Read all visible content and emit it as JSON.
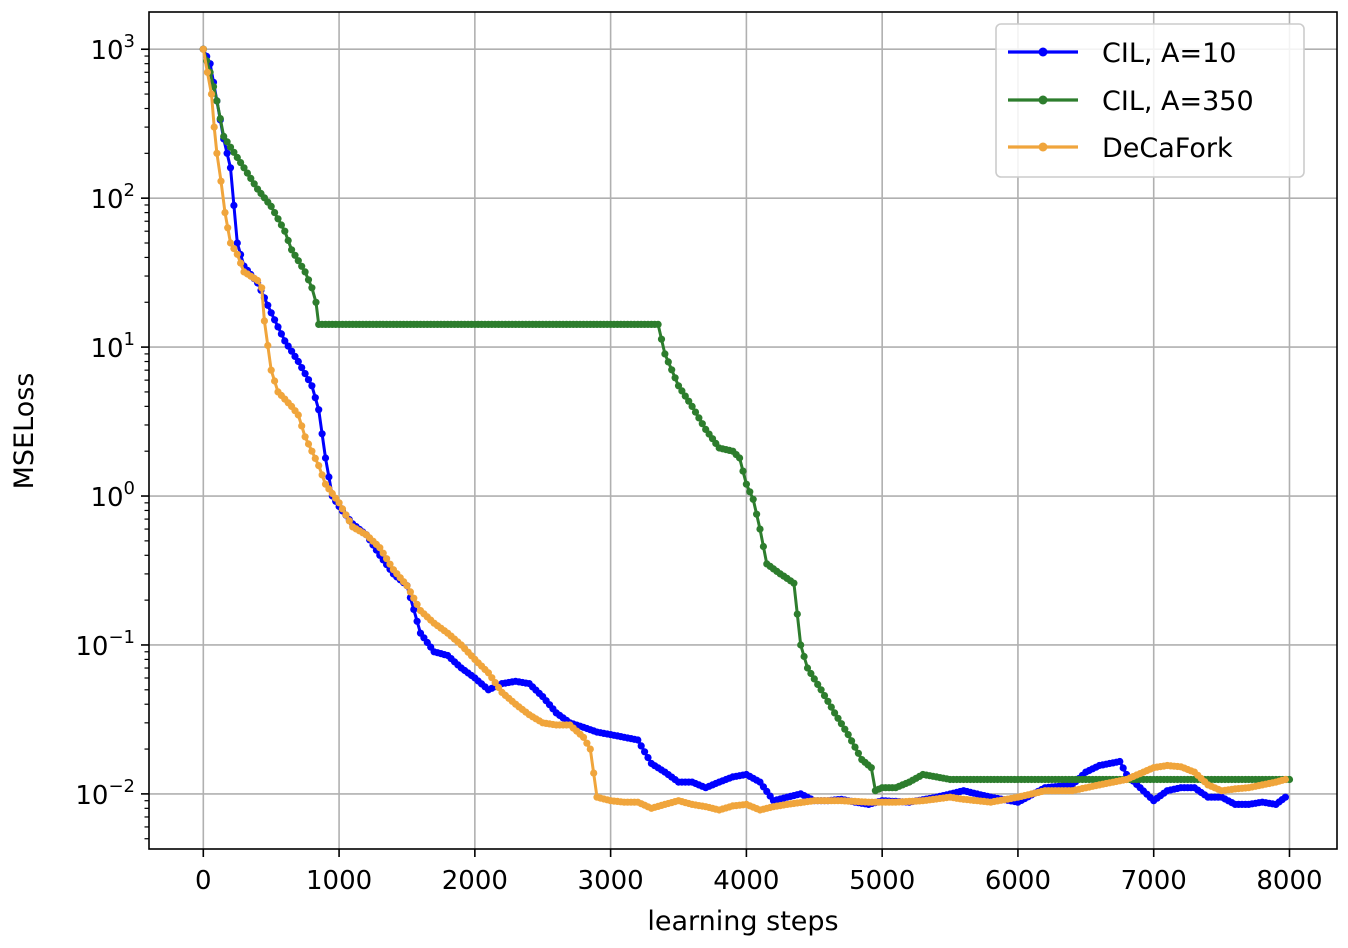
{
  "chart_data": {
    "type": "line",
    "title": "",
    "xlabel": "learning steps",
    "ylabel": "MSELoss",
    "xlim": [
      -400,
      8350
    ],
    "ylim_log10": [
      -2.37,
      3.25
    ],
    "yscale": "log",
    "grid": true,
    "legend_position": "top-right",
    "x_ticks": [
      0,
      1000,
      2000,
      3000,
      4000,
      5000,
      6000,
      7000,
      8000
    ],
    "x_tick_labels": [
      "0",
      "1000",
      "2000",
      "3000",
      "4000",
      "5000",
      "6000",
      "7000",
      "8000"
    ],
    "y_ticks_log10": [
      -2,
      -1,
      0,
      1,
      2,
      3
    ],
    "y_tick_labels": [
      {
        "base": "10",
        "exp": "−2"
      },
      {
        "base": "10",
        "exp": "−1"
      },
      {
        "base": "10",
        "exp": "0"
      },
      {
        "base": "10",
        "exp": "1"
      },
      {
        "base": "10",
        "exp": "2"
      },
      {
        "base": "10",
        "exp": "3"
      }
    ],
    "series": [
      {
        "name": "CIL, A=10",
        "color": "#0000ff",
        "points": [
          [
            0,
            1000
          ],
          [
            50,
            800
          ],
          [
            100,
            450
          ],
          [
            150,
            250
          ],
          [
            200,
            160
          ],
          [
            250,
            50
          ],
          [
            300,
            35
          ],
          [
            400,
            27
          ],
          [
            500,
            17
          ],
          [
            600,
            11
          ],
          [
            700,
            8
          ],
          [
            800,
            5.5
          ],
          [
            850,
            3.8
          ],
          [
            900,
            1.8
          ],
          [
            950,
            1.0
          ],
          [
            1000,
            0.85
          ],
          [
            1100,
            0.65
          ],
          [
            1200,
            0.55
          ],
          [
            1300,
            0.4
          ],
          [
            1400,
            0.3
          ],
          [
            1500,
            0.25
          ],
          [
            1600,
            0.12
          ],
          [
            1700,
            0.09
          ],
          [
            1800,
            0.085
          ],
          [
            1900,
            0.07
          ],
          [
            2000,
            0.06
          ],
          [
            2100,
            0.05
          ],
          [
            2200,
            0.055
          ],
          [
            2300,
            0.057
          ],
          [
            2400,
            0.055
          ],
          [
            2500,
            0.045
          ],
          [
            2600,
            0.035
          ],
          [
            2700,
            0.03
          ],
          [
            2800,
            0.028
          ],
          [
            2900,
            0.026
          ],
          [
            3000,
            0.025
          ],
          [
            3100,
            0.024
          ],
          [
            3200,
            0.023
          ],
          [
            3300,
            0.016
          ],
          [
            3400,
            0.014
          ],
          [
            3500,
            0.012
          ],
          [
            3600,
            0.012
          ],
          [
            3700,
            0.011
          ],
          [
            3800,
            0.012
          ],
          [
            3900,
            0.013
          ],
          [
            4000,
            0.0135
          ],
          [
            4100,
            0.012
          ],
          [
            4200,
            0.009
          ],
          [
            4300,
            0.0095
          ],
          [
            4400,
            0.01
          ],
          [
            4500,
            0.009
          ],
          [
            4600,
            0.009
          ],
          [
            4700,
            0.0092
          ],
          [
            4800,
            0.0088
          ],
          [
            4900,
            0.0085
          ],
          [
            5000,
            0.009
          ],
          [
            5200,
            0.0088
          ],
          [
            5400,
            0.0095
          ],
          [
            5600,
            0.0105
          ],
          [
            5800,
            0.0095
          ],
          [
            6000,
            0.0088
          ],
          [
            6200,
            0.011
          ],
          [
            6400,
            0.0115
          ],
          [
            6500,
            0.014
          ],
          [
            6600,
            0.0155
          ],
          [
            6750,
            0.0165
          ],
          [
            6800,
            0.0135
          ],
          [
            6900,
            0.011
          ],
          [
            7000,
            0.009
          ],
          [
            7100,
            0.0105
          ],
          [
            7200,
            0.011
          ],
          [
            7300,
            0.011
          ],
          [
            7400,
            0.0095
          ],
          [
            7500,
            0.0095
          ],
          [
            7600,
            0.0085
          ],
          [
            7700,
            0.0085
          ],
          [
            7800,
            0.0088
          ],
          [
            7900,
            0.0085
          ],
          [
            7970,
            0.0095
          ]
        ]
      },
      {
        "name": "CIL, A=350",
        "color": "#2d7d2d",
        "points": [
          [
            0,
            1000
          ],
          [
            50,
            700
          ],
          [
            100,
            450
          ],
          [
            150,
            260
          ],
          [
            200,
            220
          ],
          [
            300,
            160
          ],
          [
            400,
            115
          ],
          [
            500,
            88
          ],
          [
            600,
            60
          ],
          [
            650,
            45
          ],
          [
            700,
            38
          ],
          [
            750,
            32
          ],
          [
            800,
            25
          ],
          [
            830,
            20
          ],
          [
            850,
            14.2
          ],
          [
            3350,
            14.2
          ],
          [
            3400,
            9
          ],
          [
            3500,
            5.5
          ],
          [
            3600,
            4
          ],
          [
            3700,
            2.8
          ],
          [
            3800,
            2.1
          ],
          [
            3900,
            2.0
          ],
          [
            3950,
            1.8
          ],
          [
            4000,
            1.2
          ],
          [
            4050,
            0.95
          ],
          [
            4100,
            0.6
          ],
          [
            4150,
            0.35
          ],
          [
            4250,
            0.3
          ],
          [
            4300,
            0.28
          ],
          [
            4350,
            0.26
          ],
          [
            4400,
            0.1
          ],
          [
            4450,
            0.07
          ],
          [
            4550,
            0.05
          ],
          [
            4650,
            0.035
          ],
          [
            4750,
            0.025
          ],
          [
            4850,
            0.017
          ],
          [
            4920,
            0.015
          ],
          [
            4950,
            0.0105
          ],
          [
            5000,
            0.011
          ],
          [
            5100,
            0.011
          ],
          [
            5200,
            0.012
          ],
          [
            5300,
            0.0135
          ],
          [
            5400,
            0.013
          ],
          [
            5500,
            0.0125
          ],
          [
            8000,
            0.0125
          ]
        ]
      },
      {
        "name": "DeCaFork",
        "color": "#f0a53c",
        "points": [
          [
            0,
            1000
          ],
          [
            30,
            700
          ],
          [
            60,
            500
          ],
          [
            80,
            300
          ],
          [
            100,
            200
          ],
          [
            130,
            130
          ],
          [
            160,
            80
          ],
          [
            200,
            50
          ],
          [
            250,
            42
          ],
          [
            300,
            32
          ],
          [
            400,
            28
          ],
          [
            430,
            25
          ],
          [
            450,
            15
          ],
          [
            500,
            7
          ],
          [
            550,
            5
          ],
          [
            650,
            4
          ],
          [
            700,
            3.5
          ],
          [
            750,
            2.5
          ],
          [
            800,
            2.0
          ],
          [
            850,
            1.6
          ],
          [
            900,
            1.2
          ],
          [
            1000,
            0.9
          ],
          [
            1100,
            0.62
          ],
          [
            1200,
            0.55
          ],
          [
            1300,
            0.45
          ],
          [
            1400,
            0.32
          ],
          [
            1500,
            0.25
          ],
          [
            1600,
            0.17
          ],
          [
            1700,
            0.14
          ],
          [
            1800,
            0.12
          ],
          [
            1900,
            0.1
          ],
          [
            2000,
            0.08
          ],
          [
            2100,
            0.065
          ],
          [
            2200,
            0.048
          ],
          [
            2300,
            0.04
          ],
          [
            2400,
            0.034
          ],
          [
            2500,
            0.03
          ],
          [
            2600,
            0.029
          ],
          [
            2700,
            0.029
          ],
          [
            2800,
            0.024
          ],
          [
            2850,
            0.02
          ],
          [
            2900,
            0.0095
          ],
          [
            3000,
            0.009
          ],
          [
            3100,
            0.0088
          ],
          [
            3200,
            0.0088
          ],
          [
            3300,
            0.008
          ],
          [
            3400,
            0.0085
          ],
          [
            3500,
            0.009
          ],
          [
            3600,
            0.0085
          ],
          [
            3700,
            0.0082
          ],
          [
            3800,
            0.0078
          ],
          [
            3900,
            0.0083
          ],
          [
            4000,
            0.0085
          ],
          [
            4100,
            0.0078
          ],
          [
            4200,
            0.0082
          ],
          [
            4300,
            0.0085
          ],
          [
            4500,
            0.009
          ],
          [
            4700,
            0.009
          ],
          [
            4900,
            0.0088
          ],
          [
            5100,
            0.0088
          ],
          [
            5300,
            0.009
          ],
          [
            5500,
            0.0095
          ],
          [
            5600,
            0.0092
          ],
          [
            5800,
            0.0088
          ],
          [
            6000,
            0.0095
          ],
          [
            6200,
            0.0105
          ],
          [
            6400,
            0.0105
          ],
          [
            6600,
            0.0115
          ],
          [
            6800,
            0.0125
          ],
          [
            7000,
            0.015
          ],
          [
            7100,
            0.0155
          ],
          [
            7200,
            0.0152
          ],
          [
            7300,
            0.014
          ],
          [
            7400,
            0.0115
          ],
          [
            7500,
            0.0105
          ],
          [
            7600,
            0.0108
          ],
          [
            7700,
            0.011
          ],
          [
            7800,
            0.0115
          ],
          [
            7900,
            0.012
          ],
          [
            7970,
            0.0125
          ]
        ]
      }
    ]
  }
}
